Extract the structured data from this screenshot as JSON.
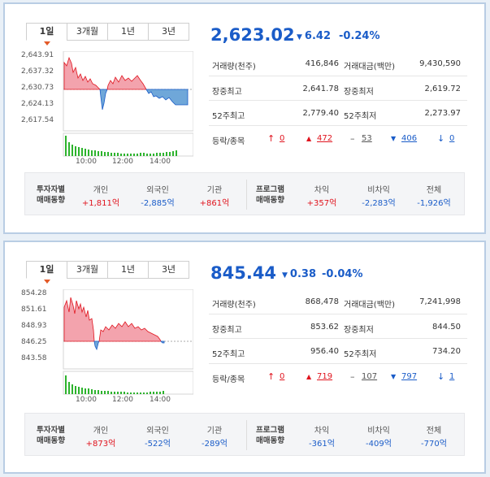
{
  "tabs": [
    "1일",
    "3개월",
    "1년",
    "3년"
  ],
  "x_ticks": [
    "10:00",
    "12:00",
    "14:00"
  ],
  "stat_labels": {
    "volume": "거래량(천주)",
    "value": "거래대금(백만)",
    "day_high": "장중최고",
    "day_low": "장중최저",
    "w52_high": "52주최고",
    "w52_low": "52주최저",
    "breadth": "등락/종목"
  },
  "investor_labels": {
    "header_line1": "투자자별",
    "header_line2": "매매동향",
    "individual": "개인",
    "foreign": "외국인",
    "institution": "기관",
    "program_line1": "프로그램",
    "program_line2": "매매동향",
    "arbitrage": "차익",
    "non_arbitrage": "비차익",
    "total": "전체"
  },
  "panels": [
    {
      "price": "2,623.02",
      "change": "6.42",
      "change_pct": "-0.24%",
      "y_ticks": [
        "2,643.91",
        "2,637.32",
        "2,630.73",
        "2,624.13",
        "2,617.54"
      ],
      "stats": {
        "volume": "416,846",
        "value": "9,430,590",
        "day_high": "2,641.78",
        "day_low": "2,619.72",
        "w52_high": "2,779.40",
        "w52_low": "2,273.97"
      },
      "breadth": {
        "upper": "0",
        "up": "472",
        "flat": "53",
        "down": "406",
        "lower": "0"
      },
      "investors": {
        "individual": "+1,811억",
        "foreign": "-2,885억",
        "institution": "+861억"
      },
      "program": {
        "arbitrage": "+357억",
        "non_arbitrage": "-2,283억",
        "total": "-1,926억"
      }
    },
    {
      "price": "845.44",
      "change": "0.38",
      "change_pct": "-0.04%",
      "y_ticks": [
        "854.28",
        "851.61",
        "848.93",
        "846.25",
        "843.58"
      ],
      "stats": {
        "volume": "868,478",
        "value": "7,241,998",
        "day_high": "853.62",
        "day_low": "844.50",
        "w52_high": "956.40",
        "w52_low": "734.20"
      },
      "breadth": {
        "upper": "0",
        "up": "719",
        "flat": "107",
        "down": "797",
        "lower": "1"
      },
      "investors": {
        "individual": "+873억",
        "foreign": "-522억",
        "institution": "-289억"
      },
      "program": {
        "arbitrage": "-361억",
        "non_arbitrage": "-409억",
        "total": "-770억"
      }
    }
  ],
  "colors": {
    "rise": "#e0141e",
    "fall": "#1a5cc8",
    "rise_fill": "#f3a3ad",
    "fall_fill": "#6fa7d9",
    "volume": "#2db32d"
  }
}
